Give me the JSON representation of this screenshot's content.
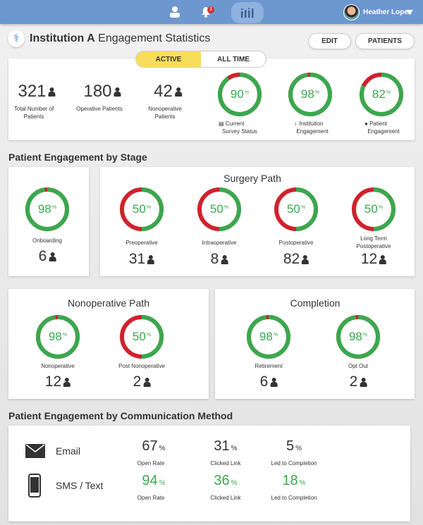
{
  "colors": {
    "green": "#3aa84e",
    "red": "#d0222c",
    "accent": "#6d97cf",
    "active": "#f8dc5b"
  },
  "topbar": {
    "icons": [
      "person-icon",
      "bell-icon",
      "bar-chart-icon"
    ],
    "notification_count": "3",
    "user_name": "Heather Lopez"
  },
  "header": {
    "title_bold": "Institution A",
    "title_rest": " Engagement Statistics",
    "edit_label": "EDIT",
    "patients_label": "PATIENTS"
  },
  "toggle": {
    "active": "ACTIVE",
    "all_time": "ALL TIME",
    "selected": "ACTIVE"
  },
  "summary": {
    "counts": [
      {
        "value": "321",
        "label": "Total Number of Patients"
      },
      {
        "value": "180",
        "label": "Operative Patients"
      },
      {
        "value": "42",
        "label": "Nonoperative Patients"
      }
    ],
    "rings": [
      {
        "pct": 90,
        "icon": "survey-icon",
        "label1": "Current",
        "label2": "Survey Status"
      },
      {
        "pct": 98,
        "icon": "stethoscope-icon",
        "label1": "Institution",
        "label2": "Engagement"
      },
      {
        "pct": 82,
        "icon": "person-icon",
        "label1": "Patient",
        "label2": "Engagement"
      }
    ]
  },
  "stage": {
    "title": "Patient Engagement by Stage",
    "onboarding": {
      "pct": 98,
      "label": "Onboarding",
      "count": "6"
    },
    "surgery": {
      "title": "Surgery Path",
      "items": [
        {
          "pct": 50,
          "label": "Preoperative",
          "count": "31"
        },
        {
          "pct": 50,
          "label": "Intraoperative",
          "count": "8"
        },
        {
          "pct": 50,
          "label": "Postoperative",
          "count": "82"
        },
        {
          "pct": 50,
          "label": "Long Term Postoperative",
          "count": "12"
        }
      ]
    },
    "nonoperative": {
      "title": "Nonoperative Path",
      "items": [
        {
          "pct": 98,
          "label": "Nonoperative",
          "count": "12"
        },
        {
          "pct": 50,
          "label": "Post Nonoperative",
          "count": "2"
        }
      ]
    },
    "completion": {
      "title": "Completion",
      "items": [
        {
          "pct": 98,
          "label": "Retirement",
          "count": "6"
        },
        {
          "pct": 98,
          "label": "Opt Out",
          "count": "2"
        }
      ]
    }
  },
  "communication": {
    "title": "Patient Engagement by Communication Method",
    "rows": [
      {
        "method": "Email",
        "icon": "envelope-icon",
        "open_rate": "67",
        "clicked": "31",
        "completion": "5",
        "highlight": false
      },
      {
        "method": "SMS / Text",
        "icon": "phone-icon",
        "open_rate": "94",
        "clicked": "36",
        "completion": "18",
        "highlight": true
      }
    ],
    "labels": {
      "open_rate": "Open Rate",
      "clicked": "Clicked Link",
      "completion": "Led to Completion"
    }
  }
}
